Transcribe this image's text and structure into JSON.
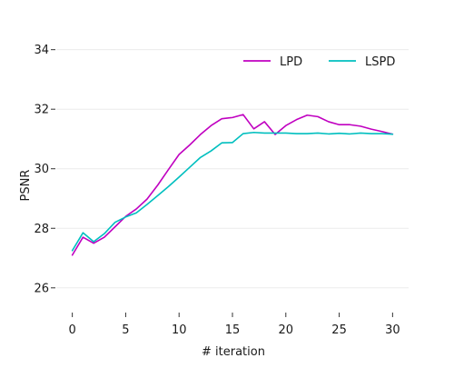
{
  "chart_data": {
    "type": "line",
    "title": "",
    "xlabel": "# iteration",
    "ylabel": "PSNR",
    "xlim": [
      -1.5,
      31.5
    ],
    "ylim": [
      25.2,
      34.6
    ],
    "xticks": [
      0,
      5,
      10,
      15,
      20,
      25,
      30
    ],
    "yticks": [
      26,
      28,
      30,
      32,
      34
    ],
    "grid": "horizontal",
    "legend_position": "top-right",
    "x": [
      0,
      1,
      2,
      3,
      4,
      5,
      6,
      7,
      8,
      9,
      10,
      11,
      12,
      13,
      14,
      15,
      16,
      17,
      18,
      19,
      20,
      21,
      22,
      23,
      24,
      25,
      26,
      27,
      28,
      29,
      30
    ],
    "series": [
      {
        "name": "LPD",
        "color": "#c000c0",
        "values": [
          27.1,
          27.7,
          27.5,
          27.7,
          28.05,
          28.4,
          28.65,
          28.98,
          29.45,
          29.97,
          30.48,
          30.8,
          31.15,
          31.45,
          31.68,
          31.72,
          31.82,
          31.34,
          31.58,
          31.15,
          31.45,
          31.65,
          31.8,
          31.75,
          31.58,
          31.48,
          31.48,
          31.43,
          31.33,
          31.25,
          31.16
        ]
      },
      {
        "name": "LSPD",
        "color": "#00bfbf",
        "values": [
          27.25,
          27.85,
          27.55,
          27.82,
          28.2,
          28.38,
          28.52,
          28.8,
          29.1,
          29.4,
          29.72,
          30.05,
          30.38,
          30.6,
          30.87,
          30.88,
          31.18,
          31.22,
          31.2,
          31.2,
          31.2,
          31.18,
          31.18,
          31.2,
          31.17,
          31.19,
          31.17,
          31.2,
          31.18,
          31.18,
          31.16
        ]
      }
    ]
  }
}
